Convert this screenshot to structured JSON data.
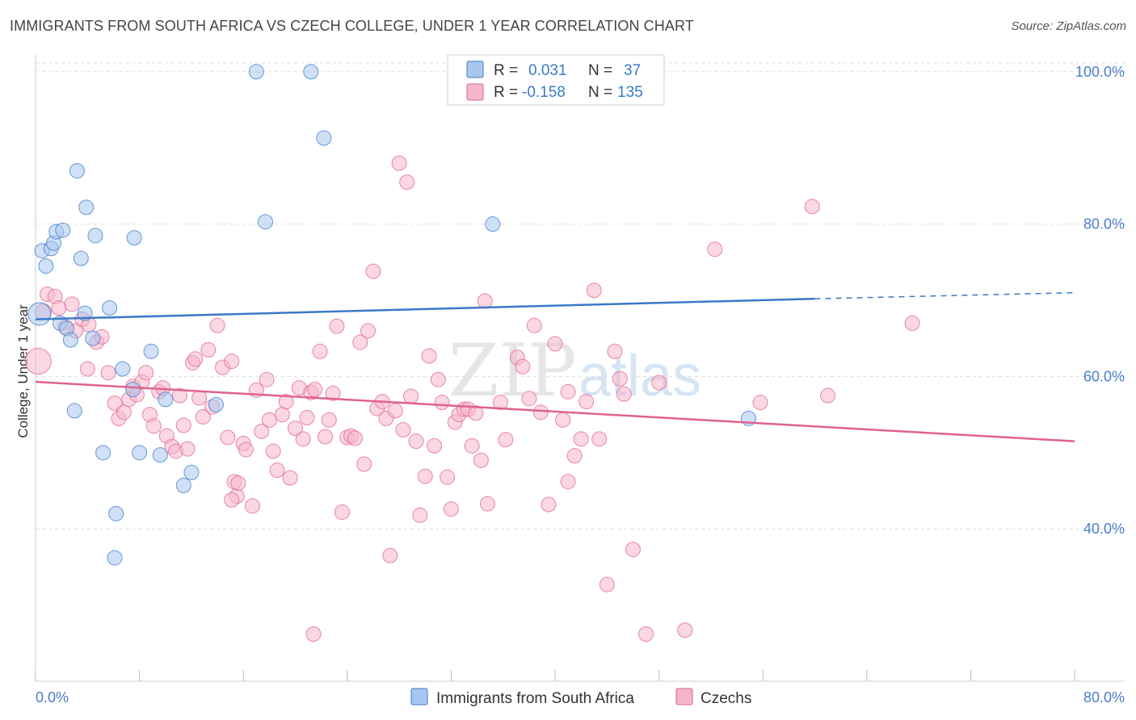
{
  "title": "IMMIGRANTS FROM SOUTH AFRICA VS CZECH COLLEGE, UNDER 1 YEAR CORRELATION CHART",
  "source": "Source: ZipAtlas.com",
  "watermark": {
    "zip": "ZIP",
    "atlas": "atlas"
  },
  "colors": {
    "blue": "#3c78c8",
    "blue_fill": "#a9c7ee",
    "pink": "#e0628f",
    "pink_fill": "#f5b6cb",
    "tick": "#4a7ec9",
    "grid": "#dedede"
  },
  "legend": {
    "rows": [
      {
        "r_label": "R =",
        "r_value": "0.031",
        "n_label": "N =",
        "n_value": "37"
      },
      {
        "r_label": "R =",
        "r_value": "-0.158",
        "n_label": "N =",
        "n_value": "135"
      }
    ]
  },
  "chart_data": {
    "type": "scatter",
    "title": "IMMIGRANTS FROM SOUTH AFRICA VS CZECH COLLEGE, UNDER 1 YEAR CORRELATION CHART",
    "xlabel": "",
    "ylabel": "College, Under 1 year",
    "xlim": [
      0,
      80
    ],
    "ylim": [
      20,
      102
    ],
    "y_ticks": [
      {
        "value": 40,
        "label": "40.0%"
      },
      {
        "value": 60,
        "label": "60.0%"
      },
      {
        "value": 80,
        "label": "80.0%"
      },
      {
        "value": 100,
        "label": "100.0%"
      }
    ],
    "x_tick_labels": {
      "left": "0.0%",
      "right": "80.0%"
    },
    "x_ticks": [
      0,
      8,
      16,
      24,
      32,
      40,
      48,
      56,
      64,
      72,
      80
    ],
    "series": [
      {
        "name": "Immigrants from South Africa",
        "color": "#3c78c8",
        "trend": {
          "x0": 0,
          "y0": 67.5,
          "x1": 60,
          "y1": 70.2,
          "dash_to_x": 80,
          "dash_to_y": 71.0
        },
        "points": [
          [
            0.3,
            68.2,
            14
          ],
          [
            0.5,
            76.5,
            9
          ],
          [
            0.8,
            74.5,
            9
          ],
          [
            1.2,
            76.8,
            9
          ],
          [
            1.4,
            77.5,
            9
          ],
          [
            1.6,
            79.0,
            9
          ],
          [
            2.1,
            79.2,
            9
          ],
          [
            1.9,
            67.0,
            9
          ],
          [
            2.4,
            66.3,
            9
          ],
          [
            2.7,
            64.8,
            9
          ],
          [
            3.2,
            87.0,
            9
          ],
          [
            3.5,
            75.5,
            9
          ],
          [
            3.9,
            82.2,
            9
          ],
          [
            4.6,
            78.5,
            9
          ],
          [
            3.0,
            55.5,
            9
          ],
          [
            3.8,
            68.3,
            9
          ],
          [
            4.4,
            65.0,
            9
          ],
          [
            5.7,
            69.0,
            9
          ],
          [
            6.7,
            61.0,
            9
          ],
          [
            7.5,
            58.3,
            9
          ],
          [
            7.6,
            78.2,
            9
          ],
          [
            8.0,
            50.0,
            9
          ],
          [
            8.9,
            63.3,
            9
          ],
          [
            9.6,
            49.7,
            9
          ],
          [
            10.0,
            57.0,
            9
          ],
          [
            5.2,
            50.0,
            9
          ],
          [
            11.4,
            45.7,
            9
          ],
          [
            13.9,
            56.3,
            9
          ],
          [
            12.0,
            47.4,
            9
          ],
          [
            6.2,
            42.0,
            9
          ],
          [
            6.1,
            36.2,
            9
          ],
          [
            17.0,
            100.0,
            9
          ],
          [
            21.2,
            100.0,
            9
          ],
          [
            22.2,
            91.3,
            9
          ],
          [
            17.7,
            80.3,
            9
          ],
          [
            35.2,
            80.0,
            9
          ],
          [
            54.9,
            54.5,
            9
          ]
        ]
      },
      {
        "name": "Czechs",
        "color": "#e0628f",
        "trend": {
          "x0": 0,
          "y0": 59.3,
          "x1": 80,
          "y1": 51.5
        },
        "points": [
          [
            0.2,
            62.0,
            16
          ],
          [
            0.6,
            68.5,
            10
          ],
          [
            0.9,
            70.8,
            9
          ],
          [
            1.5,
            70.5,
            9
          ],
          [
            1.8,
            69.0,
            9
          ],
          [
            2.3,
            66.5,
            9
          ],
          [
            2.8,
            69.5,
            9
          ],
          [
            3.1,
            66.0,
            9
          ],
          [
            3.6,
            67.5,
            9
          ],
          [
            4.1,
            66.8,
            9
          ],
          [
            4.7,
            64.5,
            9
          ],
          [
            5.1,
            65.2,
            9
          ],
          [
            4.0,
            61.0,
            9
          ],
          [
            5.6,
            60.5,
            9
          ],
          [
            6.1,
            56.5,
            9
          ],
          [
            6.4,
            54.5,
            9
          ],
          [
            6.8,
            55.3,
            9
          ],
          [
            7.2,
            57.0,
            9
          ],
          [
            7.5,
            58.7,
            9
          ],
          [
            7.8,
            57.6,
            9
          ],
          [
            8.2,
            59.3,
            9
          ],
          [
            8.5,
            60.5,
            9
          ],
          [
            8.8,
            55.0,
            9
          ],
          [
            9.1,
            53.5,
            9
          ],
          [
            9.5,
            58.0,
            9
          ],
          [
            9.8,
            58.5,
            9
          ],
          [
            10.1,
            52.2,
            9
          ],
          [
            10.5,
            50.8,
            9
          ],
          [
            10.8,
            50.2,
            9
          ],
          [
            11.1,
            57.5,
            9
          ],
          [
            11.4,
            53.6,
            9
          ],
          [
            11.7,
            50.5,
            9
          ],
          [
            12.1,
            61.8,
            9
          ],
          [
            12.3,
            62.3,
            9
          ],
          [
            12.6,
            57.2,
            9
          ],
          [
            12.9,
            54.7,
            9
          ],
          [
            13.3,
            63.5,
            9
          ],
          [
            13.6,
            56.0,
            9
          ],
          [
            14.0,
            66.7,
            9
          ],
          [
            14.4,
            61.2,
            9
          ],
          [
            15.1,
            62.0,
            9
          ],
          [
            14.8,
            52.0,
            9
          ],
          [
            15.3,
            46.2,
            9
          ],
          [
            15.5,
            44.3,
            9
          ],
          [
            15.1,
            43.8,
            9
          ],
          [
            15.6,
            46.0,
            9
          ],
          [
            16.0,
            51.2,
            9
          ],
          [
            16.2,
            50.4,
            9
          ],
          [
            16.7,
            43.0,
            9
          ],
          [
            17.0,
            58.2,
            9
          ],
          [
            17.4,
            52.8,
            9
          ],
          [
            17.8,
            59.6,
            9
          ],
          [
            18.0,
            54.3,
            9
          ],
          [
            18.3,
            50.2,
            9
          ],
          [
            18.6,
            47.7,
            9
          ],
          [
            19.0,
            55.0,
            9
          ],
          [
            19.3,
            56.7,
            9
          ],
          [
            19.6,
            46.7,
            9
          ],
          [
            20.0,
            53.2,
            9
          ],
          [
            20.3,
            58.5,
            9
          ],
          [
            20.6,
            51.8,
            9
          ],
          [
            20.9,
            54.6,
            9
          ],
          [
            21.2,
            57.9,
            9
          ],
          [
            21.5,
            58.3,
            9
          ],
          [
            21.9,
            63.3,
            9
          ],
          [
            22.3,
            52.1,
            9
          ],
          [
            22.6,
            54.3,
            9
          ],
          [
            22.9,
            57.8,
            9
          ],
          [
            23.2,
            66.6,
            9
          ],
          [
            23.6,
            42.2,
            9
          ],
          [
            24.0,
            52.0,
            9
          ],
          [
            24.3,
            52.2,
            9
          ],
          [
            24.6,
            51.9,
            9
          ],
          [
            25.0,
            64.5,
            9
          ],
          [
            25.3,
            48.5,
            9
          ],
          [
            25.6,
            66.0,
            9
          ],
          [
            26.0,
            73.8,
            9
          ],
          [
            26.3,
            55.8,
            9
          ],
          [
            26.7,
            56.7,
            9
          ],
          [
            27.0,
            54.5,
            9
          ],
          [
            27.3,
            36.5,
            9
          ],
          [
            27.7,
            55.5,
            9
          ],
          [
            28.0,
            88.0,
            9
          ],
          [
            28.3,
            53.0,
            9
          ],
          [
            28.6,
            85.5,
            9
          ],
          [
            28.9,
            57.4,
            9
          ],
          [
            29.3,
            51.5,
            9
          ],
          [
            29.6,
            41.8,
            9
          ],
          [
            30.0,
            46.9,
            9
          ],
          [
            30.3,
            62.7,
            9
          ],
          [
            30.7,
            50.9,
            9
          ],
          [
            31.0,
            59.6,
            9
          ],
          [
            31.3,
            56.6,
            9
          ],
          [
            31.7,
            46.8,
            9
          ],
          [
            32.0,
            42.6,
            9
          ],
          [
            32.3,
            54.0,
            9
          ],
          [
            32.6,
            55.0,
            9
          ],
          [
            33.0,
            55.7,
            9
          ],
          [
            33.3,
            55.7,
            9
          ],
          [
            33.6,
            50.9,
            9
          ],
          [
            33.9,
            55.2,
            9
          ],
          [
            34.3,
            49.0,
            9
          ],
          [
            34.6,
            69.9,
            9
          ],
          [
            34.8,
            43.3,
            9
          ],
          [
            35.8,
            56.6,
            9
          ],
          [
            36.2,
            51.7,
            9
          ],
          [
            37.1,
            62.5,
            9
          ],
          [
            37.5,
            61.3,
            9
          ],
          [
            38.0,
            57.1,
            9
          ],
          [
            38.4,
            66.7,
            9
          ],
          [
            38.9,
            55.3,
            9
          ],
          [
            39.5,
            43.2,
            9
          ],
          [
            40.0,
            64.3,
            9
          ],
          [
            40.6,
            54.3,
            9
          ],
          [
            41.0,
            46.2,
            9
          ],
          [
            41.5,
            49.6,
            9
          ],
          [
            42.0,
            51.8,
            9
          ],
          [
            42.4,
            56.7,
            9
          ],
          [
            43.0,
            71.3,
            9
          ],
          [
            43.4,
            51.8,
            9
          ],
          [
            44.0,
            32.7,
            9
          ],
          [
            44.6,
            63.3,
            9
          ],
          [
            45.0,
            59.7,
            9
          ],
          [
            45.3,
            57.7,
            9
          ],
          [
            46.0,
            37.3,
            9
          ],
          [
            47.0,
            26.2,
            9
          ],
          [
            48.0,
            59.2,
            9
          ],
          [
            52.3,
            76.7,
            9
          ],
          [
            55.8,
            56.6,
            9
          ],
          [
            59.8,
            82.3,
            9
          ],
          [
            61.0,
            57.5,
            9
          ],
          [
            67.5,
            67.0,
            9
          ],
          [
            21.4,
            26.2,
            9
          ],
          [
            50.0,
            26.7,
            9
          ],
          [
            41.0,
            58.0,
            9
          ]
        ]
      }
    ]
  },
  "bottom_legend": [
    {
      "label": "Immigrants from South Africa",
      "color": "#a9c7ee",
      "stroke": "#3c78c8"
    },
    {
      "label": "Czechs",
      "color": "#f5b6cb",
      "stroke": "#e0628f"
    }
  ]
}
